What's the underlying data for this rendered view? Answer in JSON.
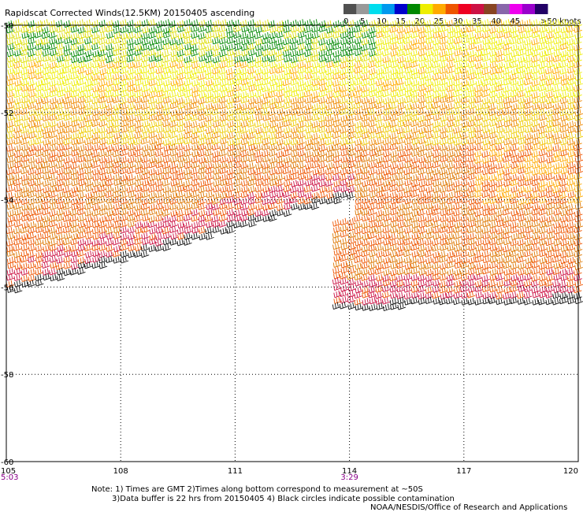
{
  "title": "Rapidscat Corrected Winds(12.5KM) 20150405 ascending",
  "legend": {
    "labels": [
      "0",
      "5",
      "10",
      "15",
      "20",
      "25",
      "30",
      "35",
      "40",
      "45",
      ">50 knots"
    ],
    "colors": [
      "#505050",
      "#999999",
      "#00ddee",
      "#0099ee",
      "#0000cc",
      "#008800",
      "#eeee00",
      "#ffaa00",
      "#ee5500",
      "#ee0022",
      "#cc1144",
      "#884422",
      "#8866aa",
      "#ee00ee",
      "#9900cc",
      "#220066"
    ]
  },
  "axes": {
    "x_ticks": [
      "105",
      "108",
      "111",
      "114",
      "117",
      "120"
    ],
    "y_ticks": [
      "-50",
      "-52",
      "-54",
      "-56",
      "-58",
      "-60"
    ],
    "time_labels": [
      {
        "lon": 105,
        "text": "5:03"
      },
      {
        "lon": 114,
        "text": "3:29"
      }
    ]
  },
  "notes": [
    "Note: 1) Times are GMT 2)Times along bottom correspond to measurement at ~50S",
    "3)Data buffer is 22 hrs from 20150405 4) Black circles indicate possible contamination",
    "NOAA/NESDIS/Office of Research and Applications"
  ],
  "map_data": {
    "lon_range": [
      105,
      120
    ],
    "lat_range": [
      -60,
      -50
    ],
    "grid": true,
    "swaths": [
      {
        "name": "west-swath",
        "lon_range": [
          105,
          114
        ],
        "south_edge_lat": [
          -56.2,
          -54.0
        ]
      },
      {
        "name": "east-swath",
        "lon_range": [
          113.5,
          120
        ],
        "south_edge_lat": [
          -56.6,
          -56.4
        ]
      }
    ]
  }
}
